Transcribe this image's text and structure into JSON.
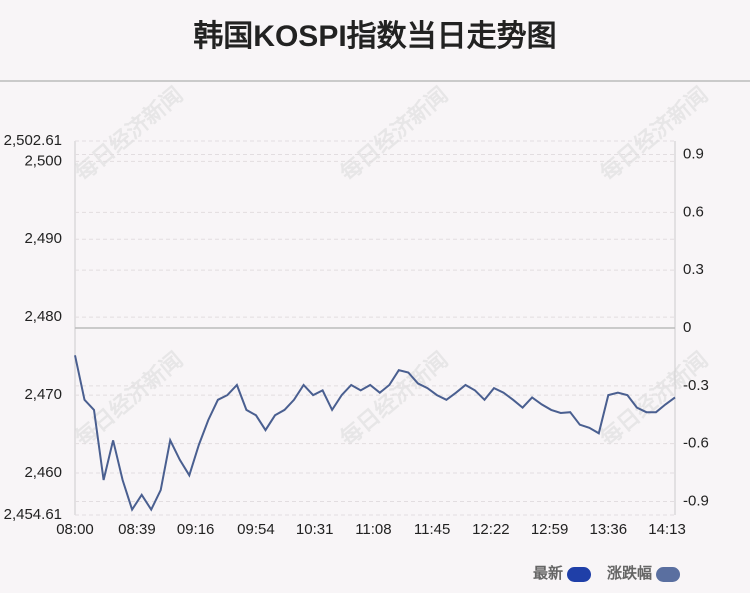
{
  "chart_data": {
    "type": "line",
    "title": "韩国KOSPI指数当日走势图",
    "watermark": "每日经济新闻",
    "x": [
      "08:00",
      "08:06",
      "08:12",
      "08:18",
      "08:24",
      "08:30",
      "08:36",
      "08:42",
      "08:48",
      "08:54",
      "09:00",
      "09:06",
      "09:12",
      "09:18",
      "09:24",
      "09:30",
      "09:36",
      "09:42",
      "09:48",
      "09:54",
      "10:00",
      "10:06",
      "10:12",
      "10:18",
      "10:24",
      "10:30",
      "10:36",
      "10:42",
      "10:48",
      "10:54",
      "11:00",
      "11:06",
      "11:12",
      "11:18",
      "11:24",
      "11:30",
      "11:36",
      "11:42",
      "11:48",
      "11:54",
      "12:00",
      "12:06",
      "12:12",
      "12:18",
      "12:24",
      "12:30",
      "12:36",
      "12:42",
      "12:48",
      "12:54",
      "13:00",
      "13:06",
      "13:12",
      "13:18",
      "13:24",
      "13:30",
      "13:36",
      "13:42",
      "13:48",
      "13:54",
      "14:00",
      "14:06",
      "14:12",
      "14:18"
    ],
    "series": [
      {
        "name": "最新",
        "color": "#4a5f90",
        "values": [
          2475.1,
          2469.4,
          2468.1,
          2459.1,
          2464.2,
          2459.1,
          2455.3,
          2457.2,
          2455.3,
          2457.8,
          2464.2,
          2461.7,
          2459.7,
          2463.6,
          2466.8,
          2469.4,
          2470.0,
          2471.3,
          2468.1,
          2467.4,
          2465.5,
          2467.4,
          2468.1,
          2469.4,
          2471.3,
          2470.0,
          2470.6,
          2468.1,
          2470.0,
          2471.3,
          2470.6,
          2471.3,
          2470.3,
          2471.3,
          2473.2,
          2472.9,
          2471.5,
          2470.9,
          2470.0,
          2469.4,
          2470.3,
          2471.3,
          2470.6,
          2469.4,
          2470.9,
          2470.3,
          2469.4,
          2468.4,
          2469.7,
          2468.8,
          2468.1,
          2467.7,
          2467.8,
          2466.2,
          2465.8,
          2465.1,
          2470.0,
          2470.3,
          2470.0,
          2468.4,
          2467.8,
          2467.8,
          2468.8,
          2469.7
        ]
      }
    ],
    "legend": [
      {
        "name": "最新",
        "color": "#1f3fa8"
      },
      {
        "name": "涨跌幅",
        "color": "#5a6fa0"
      }
    ],
    "xlim": [
      "08:00",
      "14:18"
    ],
    "xticks": [
      "08:00",
      "08:39",
      "09:16",
      "09:54",
      "10:31",
      "11:08",
      "11:45",
      "12:22",
      "12:59",
      "13:36",
      "14:13"
    ],
    "ylim": [
      2454.61,
      2502.61
    ],
    "yticks": [
      {
        "value": 2454.61,
        "label": "2,454.61"
      },
      {
        "value": 2460,
        "label": "2,460"
      },
      {
        "value": 2470,
        "label": "2,470"
      },
      {
        "value": 2480,
        "label": "2,480"
      },
      {
        "value": 2490,
        "label": "2,490"
      },
      {
        "value": 2500,
        "label": "2,500"
      },
      {
        "value": 2502.61,
        "label": "2,502.61"
      }
    ],
    "y2lim": [
      -0.97,
      0.97
    ],
    "y2ticks": [
      -0.9,
      -0.6,
      -0.3,
      0,
      0.3,
      0.6,
      0.9
    ],
    "grid": true
  }
}
